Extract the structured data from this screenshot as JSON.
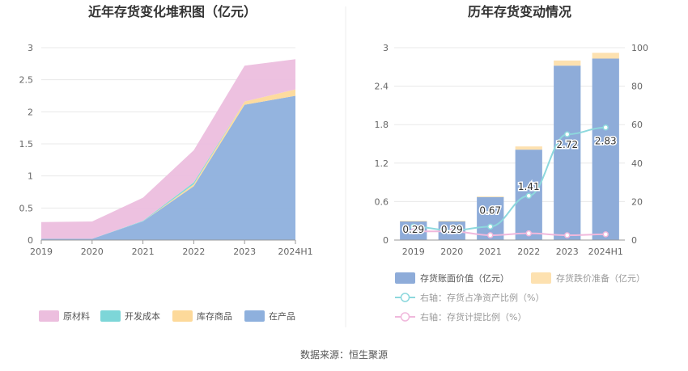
{
  "chart_data": [
    {
      "type": "area",
      "title": "近年存货变化堆积图（亿元）",
      "categories": [
        "2019",
        "2020",
        "2021",
        "2022",
        "2023",
        "2024H1"
      ],
      "ylim": [
        0,
        3
      ],
      "yticks": [
        "0",
        "0.5",
        "1",
        "1.5",
        "2",
        "2.5",
        "3"
      ],
      "stacked": true,
      "grid": true,
      "legend_position": "bottom",
      "series": [
        {
          "name": "在产品",
          "color": "#8eb0dd",
          "values": [
            0.02,
            0.02,
            0.29,
            0.84,
            2.11,
            2.25
          ]
        },
        {
          "name": "库存商品",
          "color": "#fdd99a",
          "values": [
            0.0,
            0.0,
            0.0,
            0.03,
            0.05,
            0.1
          ]
        },
        {
          "name": "开发成本",
          "color": "#7dd6d8",
          "values": [
            0.0,
            0.0,
            0.01,
            0.03,
            0.0,
            0.0
          ]
        },
        {
          "name": "原材料",
          "color": "#ecbede",
          "values": [
            0.26,
            0.27,
            0.36,
            0.5,
            0.56,
            0.47
          ]
        }
      ],
      "legend_order": [
        "原材料",
        "开发成本",
        "库存商品",
        "在产品"
      ]
    },
    {
      "type": "bar",
      "title": "历年存货变动情况",
      "categories": [
        "2019",
        "2020",
        "2021",
        "2022",
        "2023",
        "2024H1"
      ],
      "ylim": [
        0,
        3
      ],
      "yticks": [
        "0",
        "0.6",
        "1.2",
        "1.8",
        "2.4",
        "3"
      ],
      "ylim_right": [
        0,
        100
      ],
      "yticks_right": [
        "0",
        "20",
        "40",
        "60",
        "80",
        "100"
      ],
      "legend_position": "bottom",
      "series": [
        {
          "name": "存货账面价值（亿元）",
          "color": "#8eacd9",
          "axis": "left",
          "kind": "bar",
          "values": [
            0.29,
            0.29,
            0.67,
            1.41,
            2.72,
            2.83
          ],
          "labels": [
            "0.29",
            "0.29",
            "0.67",
            "1.41",
            "2.72",
            "2.83"
          ]
        },
        {
          "name": "存货跌价准备（亿元）",
          "color": "#fde1b0",
          "axis": "left",
          "kind": "bar",
          "values": [
            0.01,
            0.01,
            0.01,
            0.05,
            0.08,
            0.09
          ]
        },
        {
          "name": "右轴：存货占净资产比例（%）",
          "color": "#8dd8dd",
          "axis": "right",
          "kind": "line",
          "values": [
            7,
            5,
            7,
            23,
            55,
            58.5
          ]
        },
        {
          "name": "右轴：存货计提比例（%）",
          "color": "#f0b8dc",
          "axis": "right",
          "kind": "line",
          "values": [
            4.5,
            4.5,
            2.5,
            3.5,
            2.5,
            3
          ]
        }
      ]
    }
  ],
  "footer": {
    "source": "数据来源：恒生聚源"
  }
}
